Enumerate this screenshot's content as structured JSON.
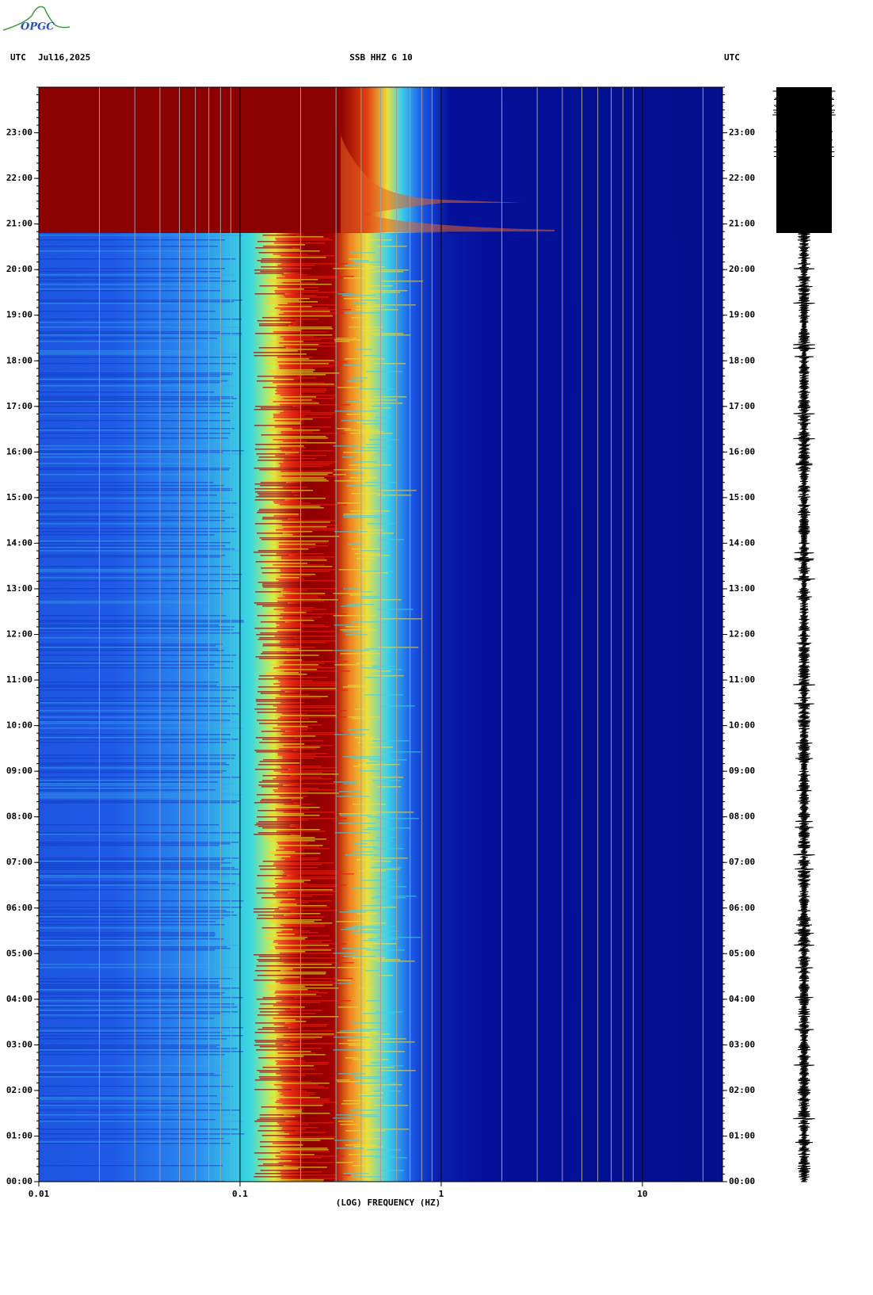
{
  "chart_data": {
    "type": "spectrogram",
    "title": "SSB HHZ G 10",
    "annotations": [
      "UTC",
      "Jul16,2025",
      "UTC",
      "OPGC"
    ],
    "xlabel": "(LOG) FREQUENCY (HZ)",
    "xscale": "log",
    "xlim": [
      0.01,
      25
    ],
    "xticks": [
      0.01,
      0.1,
      1,
      10
    ],
    "ylim": [
      0,
      24
    ],
    "yticks": [
      {
        "value": 0,
        "label": "00:00"
      },
      {
        "value": 1,
        "label": "01:00"
      },
      {
        "value": 2,
        "label": "02:00"
      },
      {
        "value": 3,
        "label": "03:00"
      },
      {
        "value": 4,
        "label": "04:00"
      },
      {
        "value": 5,
        "label": "05:00"
      },
      {
        "value": 6,
        "label": "06:00"
      },
      {
        "value": 7,
        "label": "07:00"
      },
      {
        "value": 8,
        "label": "08:00"
      },
      {
        "value": 9,
        "label": "09:00"
      },
      {
        "value": 10,
        "label": "10:00"
      },
      {
        "value": 11,
        "label": "11:00"
      },
      {
        "value": 12,
        "label": "12:00"
      },
      {
        "value": 13,
        "label": "13:00"
      },
      {
        "value": 14,
        "label": "14:00"
      },
      {
        "value": 15,
        "label": "15:00"
      },
      {
        "value": 16,
        "label": "16:00"
      },
      {
        "value": 17,
        "label": "17:00"
      },
      {
        "value": 18,
        "label": "18:00"
      },
      {
        "value": 19,
        "label": "19:00"
      },
      {
        "value": 20,
        "label": "20:00"
      },
      {
        "value": 21,
        "label": "21:00"
      },
      {
        "value": 22,
        "label": "22:00"
      },
      {
        "value": 23,
        "label": "23:00"
      }
    ],
    "grid": true
  }
}
